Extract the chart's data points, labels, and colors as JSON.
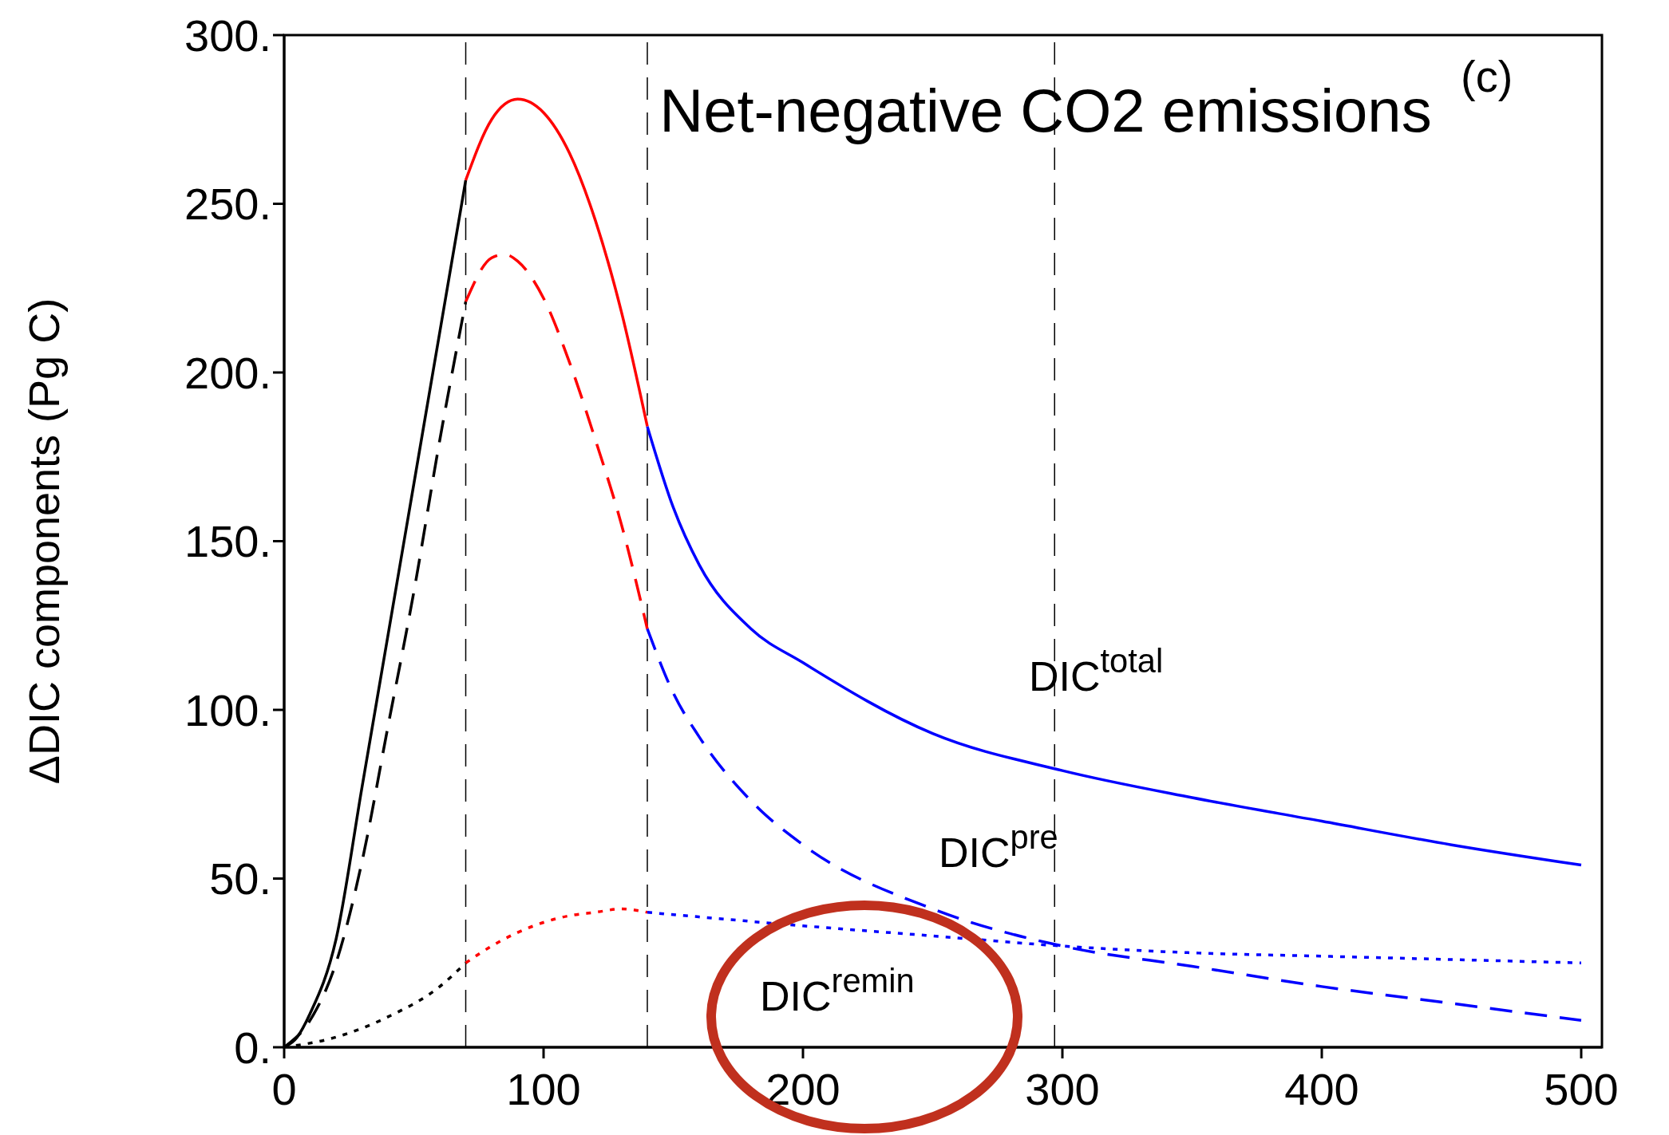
{
  "chart_data": {
    "type": "line",
    "title": "Net-negative CO2 emissions",
    "ylabel": "ΔDIC components (Pg C)",
    "xlim": [
      0,
      508
    ],
    "xticks": [
      0,
      100,
      200,
      300,
      400,
      500
    ],
    "ylim": [
      0,
      300
    ],
    "yticks": [
      {
        "value": 0,
        "label": "0."
      },
      {
        "value": 50,
        "label": "50."
      },
      {
        "value": 100,
        "label": "100."
      },
      {
        "value": 150,
        "label": "150."
      },
      {
        "value": 200,
        "label": "200."
      },
      {
        "value": 250,
        "label": "250."
      },
      {
        "value": 300,
        "label": "300."
      }
    ],
    "marker": "none",
    "series": [
      {
        "color": "#000000",
        "line_style": "solid",
        "x": [
          0,
          5,
          10,
          20,
          30,
          40,
          50,
          60,
          70
        ],
        "values": [
          0,
          3,
          10,
          32,
          77,
          122,
          167,
          212,
          257
        ]
      },
      {
        "color": "#ff0000",
        "line_style": "solid",
        "x": [
          70,
          80,
          90,
          100,
          110,
          120,
          130,
          140
        ],
        "values": [
          257,
          275,
          281,
          277,
          265,
          245,
          218,
          184
        ]
      },
      {
        "color": "#0000ff",
        "line_style": "solid",
        "x": [
          140,
          150,
          160,
          180,
          200,
          250,
          300,
          350,
          400,
          450,
          500
        ],
        "values": [
          184,
          160,
          143,
          124,
          114,
          93,
          82,
          74,
          67,
          60,
          54
        ]
      },
      {
        "color": "#000000",
        "line_style": "dashed",
        "x": [
          0,
          10,
          20,
          30,
          40,
          50,
          60,
          70
        ],
        "values": [
          0,
          8,
          25,
          55,
          95,
          135,
          180,
          221
        ]
      },
      {
        "color": "#ff0000",
        "line_style": "dashed",
        "x": [
          70,
          80,
          85,
          90,
          100,
          110,
          120,
          130,
          140
        ],
        "values": [
          221,
          234,
          235,
          233,
          222,
          203,
          180,
          155,
          124
        ]
      },
      {
        "color": "#0000ff",
        "line_style": "dashed",
        "x": [
          140,
          150,
          160,
          180,
          200,
          250,
          300,
          350,
          400,
          450,
          500
        ],
        "values": [
          124,
          105,
          92,
          73,
          60,
          41,
          30,
          24,
          18,
          13,
          8
        ]
      },
      {
        "color": "#000000",
        "line_style": "dotted",
        "x": [
          0,
          20,
          40,
          60,
          70
        ],
        "values": [
          0,
          3,
          9,
          18,
          25
        ]
      },
      {
        "color": "#ff0000",
        "line_style": "dotted",
        "x": [
          70,
          80,
          90,
          100,
          110,
          120,
          130,
          140
        ],
        "values": [
          25,
          30,
          34,
          37,
          39,
          40,
          41,
          40
        ]
      },
      {
        "color": "#0000ff",
        "line_style": "dotted",
        "x": [
          140,
          200,
          250,
          300,
          350,
          400,
          450,
          500
        ],
        "values": [
          40,
          36,
          33,
          30,
          28,
          27,
          26,
          25
        ]
      }
    ],
    "ref_lines": [
      {
        "axis": "x",
        "value": 70,
        "color": "#000000",
        "line_style": "dashed"
      },
      {
        "axis": "x",
        "value": 140,
        "color": "#000000",
        "line_style": "dashed"
      },
      {
        "axis": "x",
        "value": 297,
        "color": "#000000",
        "line_style": "dashed"
      }
    ],
    "annotations": [
      "(c)",
      "DIC$^{total}$",
      "DIC$^{pre}$",
      "DIC$^{remin}$"
    ]
  }
}
